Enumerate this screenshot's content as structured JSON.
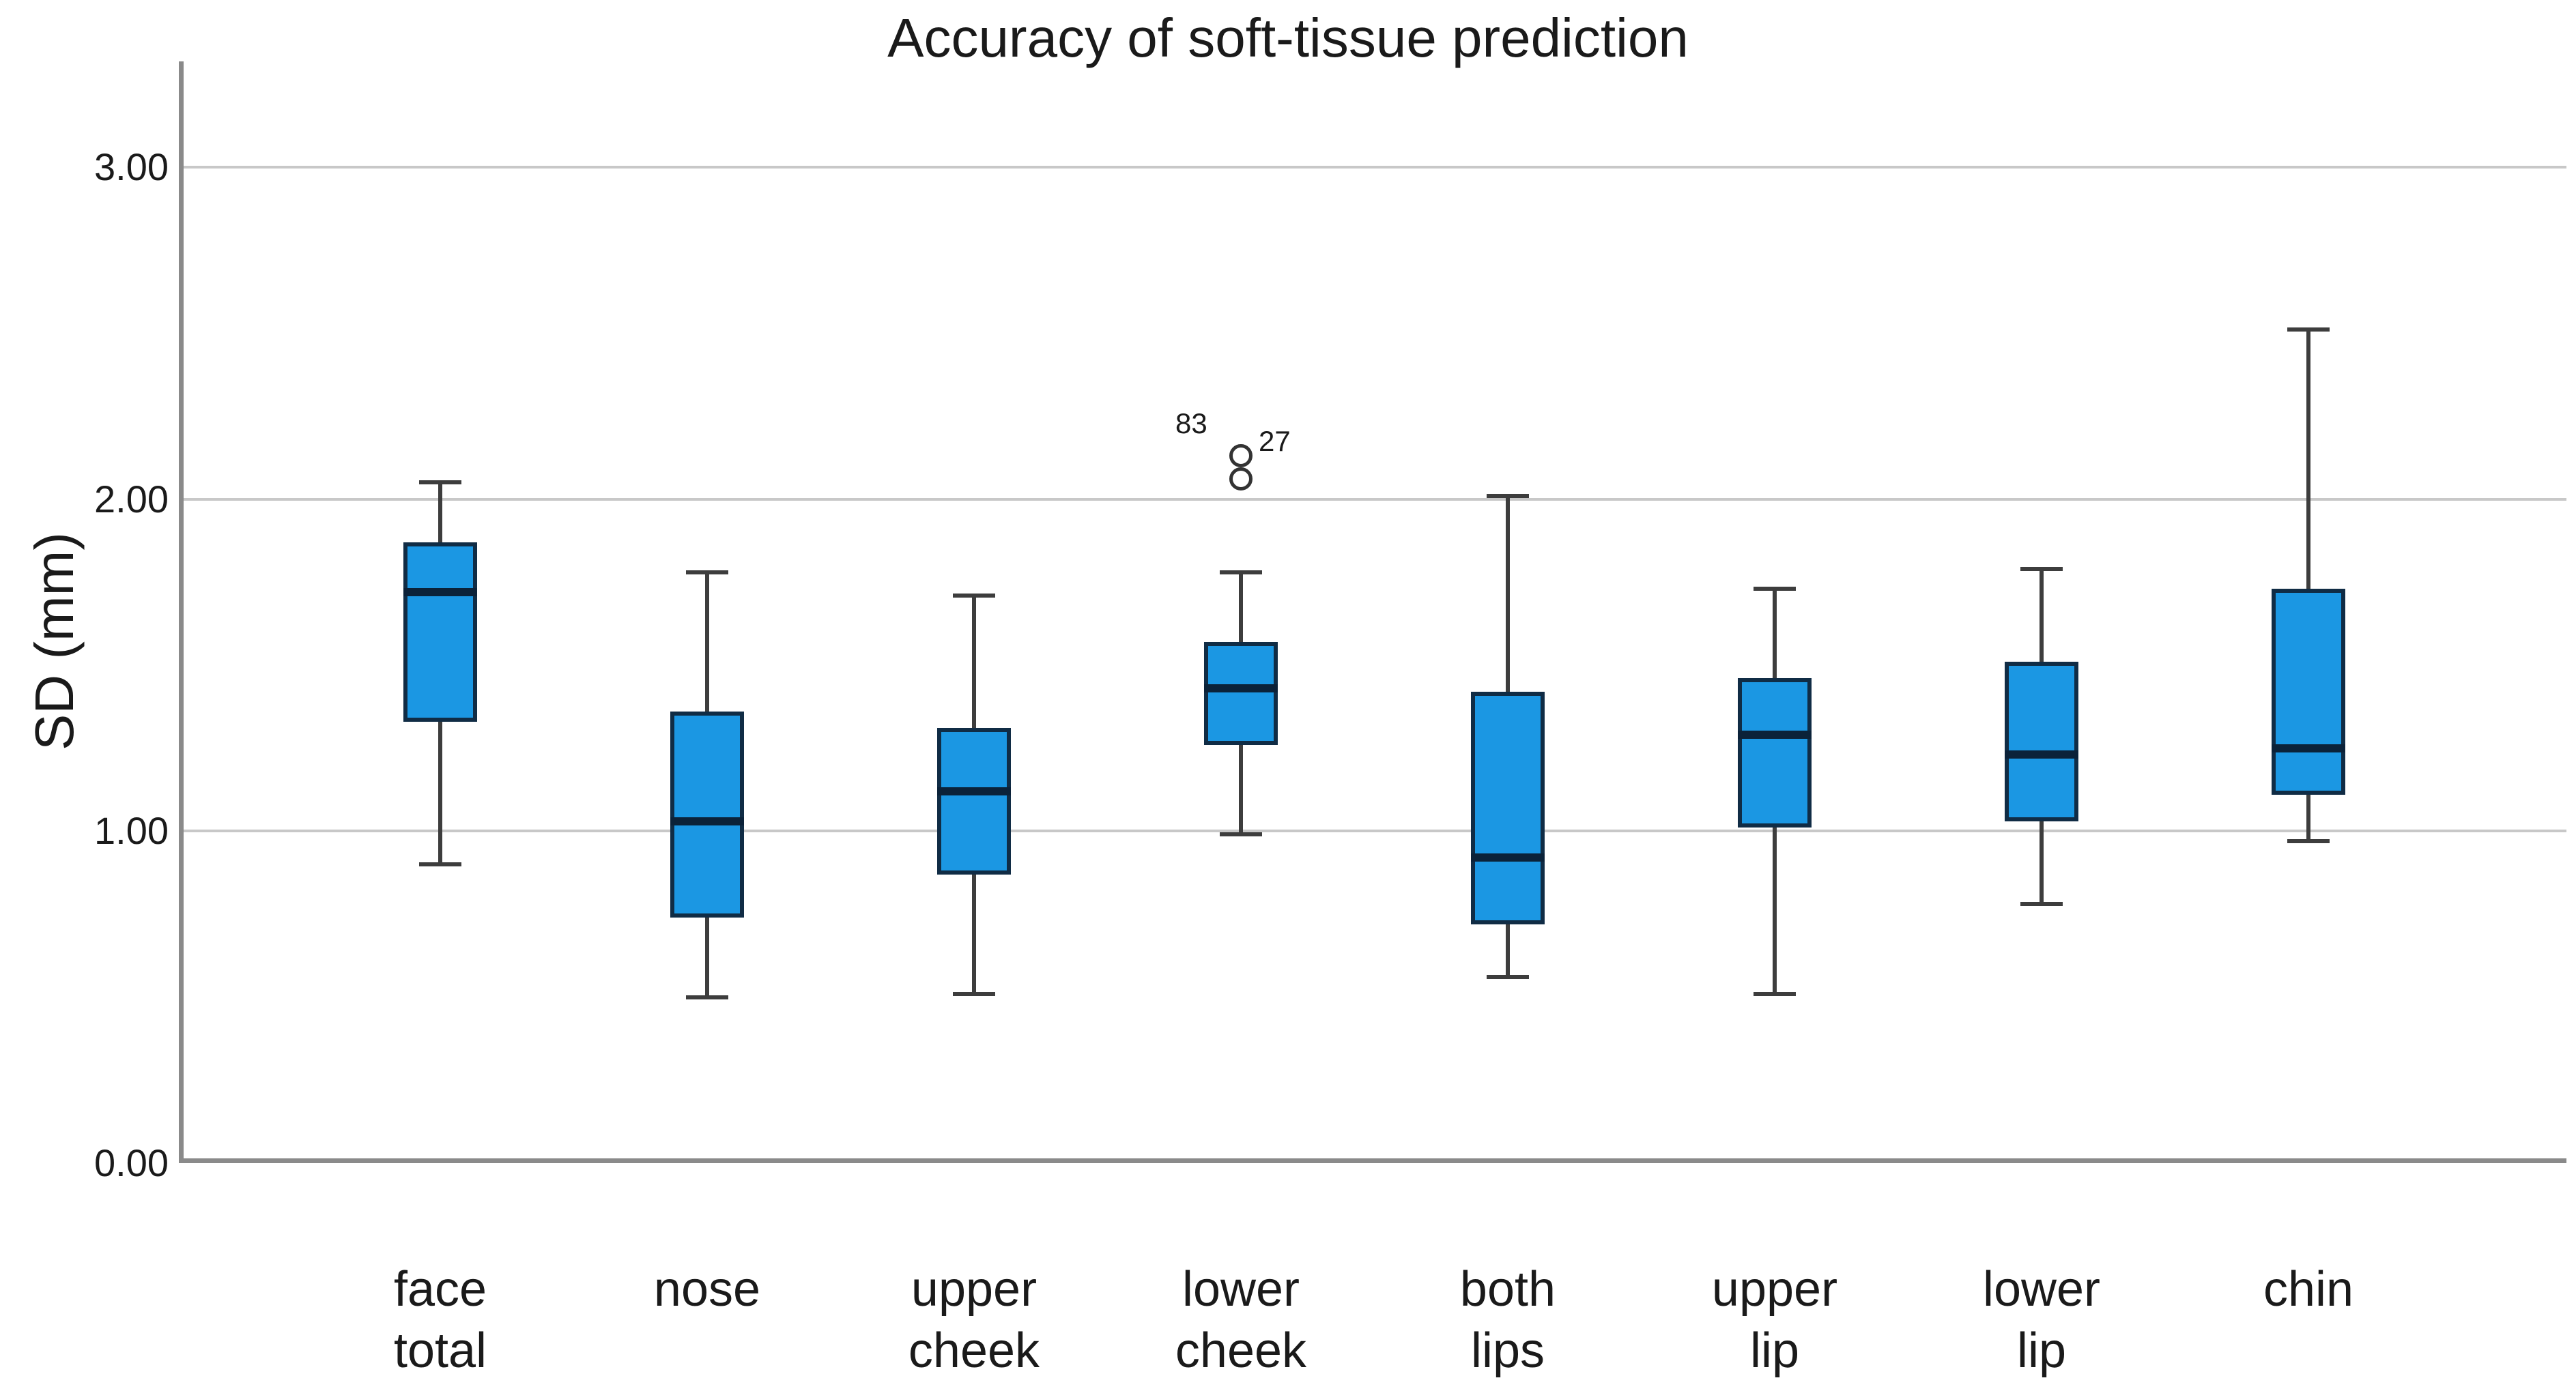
{
  "title": "Accuracy of soft-tissue prediction",
  "chart_data": {
    "type": "boxplot",
    "title": "Accuracy of soft-tissue prediction",
    "ylabel": "SD (mm)",
    "xlabel": "",
    "ylim": [
      0,
      3.35
    ],
    "yticks": [
      0,
      1,
      2,
      3
    ],
    "ytick_labels": [
      "0.00",
      "1.00",
      "2.00",
      "3.00"
    ],
    "grid": "horizontal gridlines at each labeled y tick",
    "legend": "none",
    "categories": [
      "face total",
      "nose",
      "upper cheek",
      "lower cheek",
      "both lips",
      "upper lip",
      "lower lip",
      "chin"
    ],
    "category_label_lines": [
      [
        "face",
        "total"
      ],
      [
        "nose"
      ],
      [
        "upper",
        "cheek"
      ],
      [
        "lower",
        "cheek"
      ],
      [
        "both",
        "lips"
      ],
      [
        "upper",
        "lip"
      ],
      [
        "lower",
        "lip"
      ],
      [
        "chin"
      ]
    ],
    "series": [
      {
        "category": "face total",
        "min": 0.9,
        "q1": 1.33,
        "median": 1.72,
        "q3": 1.87,
        "max": 2.05,
        "outliers": []
      },
      {
        "category": "nose",
        "min": 0.5,
        "q1": 0.74,
        "median": 1.03,
        "q3": 1.36,
        "max": 1.78,
        "outliers": []
      },
      {
        "category": "upper cheek",
        "min": 0.51,
        "q1": 0.87,
        "median": 1.12,
        "q3": 1.31,
        "max": 1.71,
        "outliers": []
      },
      {
        "category": "lower cheek",
        "min": 0.99,
        "q1": 1.26,
        "median": 1.43,
        "q3": 1.57,
        "max": 1.78,
        "outliers": [
          {
            "value": 2.13,
            "label": "27",
            "label_dx": 26,
            "label_dy": -44
          },
          {
            "value": 2.06,
            "label": "83",
            "label_dx": -96,
            "label_dy": -104
          }
        ]
      },
      {
        "category": "both lips",
        "min": 0.56,
        "q1": 0.72,
        "median": 0.92,
        "q3": 1.42,
        "max": 2.01,
        "outliers": []
      },
      {
        "category": "upper lip",
        "min": 0.51,
        "q1": 1.01,
        "median": 1.29,
        "q3": 1.46,
        "max": 1.73,
        "outliers": []
      },
      {
        "category": "lower lip",
        "min": 0.78,
        "q1": 1.03,
        "median": 1.23,
        "q3": 1.51,
        "max": 1.79,
        "outliers": []
      },
      {
        "category": "chin",
        "min": 0.97,
        "q1": 1.11,
        "median": 1.25,
        "q3": 1.73,
        "max": 2.51,
        "outliers": []
      }
    ]
  },
  "colors": {
    "box_fill": "#1B97E3",
    "box_border": "#102C45",
    "median": "#0B2239",
    "whisker": "#3D3D3D",
    "outlier_stroke": "#333333",
    "gridline": "#C8C8C8",
    "axis": "#8A8A8A",
    "text": "#1A1A1A",
    "background": "#FFFFFF"
  }
}
